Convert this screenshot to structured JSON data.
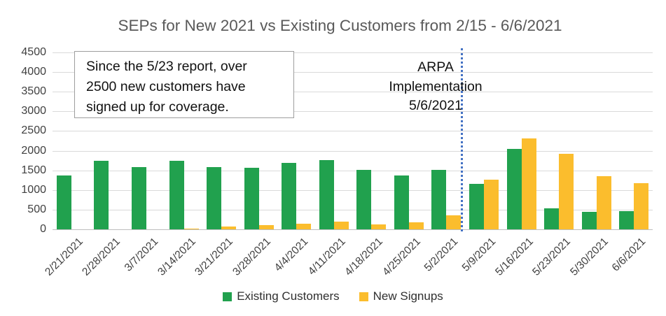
{
  "title": "SEPs for New 2021 vs Existing Customers from 2/15 - 6/6/2021",
  "annotation_box": {
    "line1": "Since the 5/23 report, over",
    "line2": "2500 new customers have",
    "line3": "signed up for coverage."
  },
  "vline_label": {
    "line1": "ARPA",
    "line2": "Implementation",
    "line3": "5/6/2021"
  },
  "colors": {
    "existing_customers": "#21a14e",
    "new_signups": "#fbbd2d",
    "vline": "#4472c4",
    "title_text": "#595959",
    "axis_text": "#404040",
    "gridline": "#d9d9d9"
  },
  "chart_data": {
    "type": "bar",
    "title": "SEPs for New 2021 vs Existing Customers from 2/15 - 6/6/2021",
    "categories": [
      "2/21/2021",
      "2/28/2021",
      "3/7/2021",
      "3/14/2021",
      "3/21/2021",
      "3/28/2021",
      "4/4/2021",
      "4/11/2021",
      "4/18/2021",
      "4/25/2021",
      "5/2/2021",
      "5/9/2021",
      "5/16/2021",
      "5/23/2021",
      "5/30/2021",
      "6/6/2021"
    ],
    "series": [
      {
        "name": "Existing Customers",
        "color": "#21a14e",
        "values": [
          1370,
          1750,
          1590,
          1740,
          1580,
          1560,
          1690,
          1770,
          1520,
          1370,
          1510,
          1160,
          2050,
          540,
          450,
          460
        ]
      },
      {
        "name": "New Signups",
        "color": "#fbbd2d",
        "values": [
          0,
          0,
          0,
          20,
          70,
          100,
          150,
          200,
          130,
          170,
          350,
          1260,
          2310,
          1920,
          1360,
          1180
        ]
      }
    ],
    "ylim": [
      0,
      4500
    ],
    "ytick_step": 500,
    "grid": true,
    "legend_position": "bottom",
    "vline": {
      "date": "5/6/2021",
      "between": [
        "5/2/2021",
        "5/9/2021"
      ],
      "style": "dotted",
      "color": "#4472c4"
    }
  },
  "legend": {
    "items": [
      {
        "label": "Existing Customers",
        "color": "#21a14e"
      },
      {
        "label": "New Signups",
        "color": "#fbbd2d"
      }
    ]
  }
}
